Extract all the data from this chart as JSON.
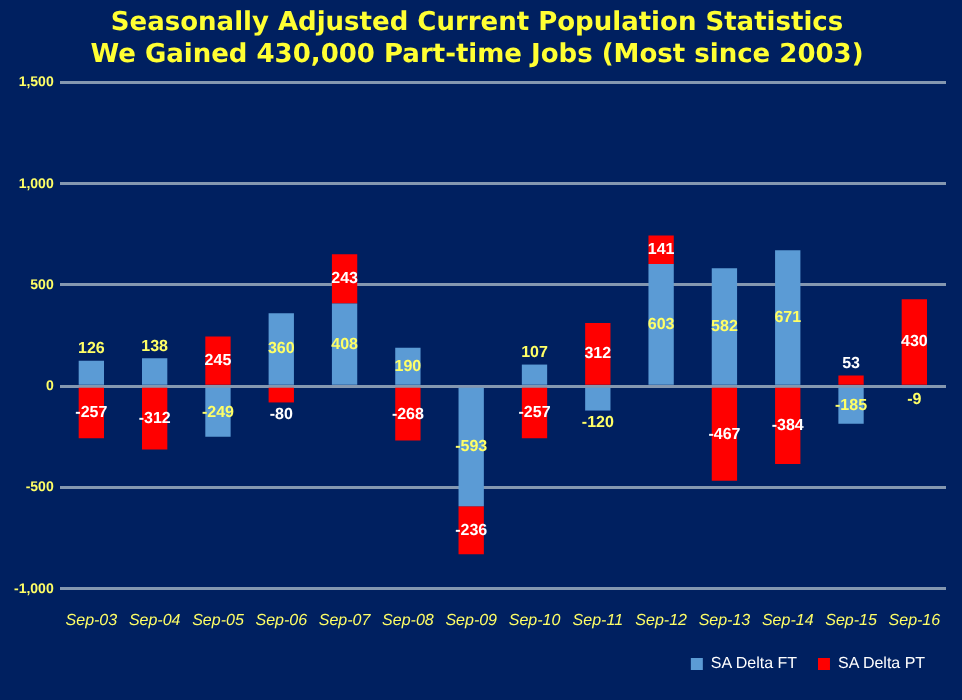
{
  "chart_data": {
    "type": "bar",
    "stacked": true,
    "title": "Seasonally Adjusted Current Population Statistics",
    "subtitle": "We Gained 430,000 Part-time Jobs (Most since 2003)",
    "categories": [
      "Sep-03",
      "Sep-04",
      "Sep-05",
      "Sep-06",
      "Sep-07",
      "Sep-08",
      "Sep-09",
      "Sep-10",
      "Sep-11",
      "Sep-12",
      "Sep-13",
      "Sep-14",
      "Sep-15",
      "Sep-16"
    ],
    "series": [
      {
        "name": "SA Delta FT",
        "color": "#5b9bd5",
        "values": [
          126,
          138,
          -249,
          360,
          408,
          190,
          -593,
          107,
          -120,
          603,
          582,
          671,
          -185,
          -9
        ]
      },
      {
        "name": "SA Delta PT",
        "color": "#ff0000",
        "values": [
          -257,
          -312,
          245,
          -80,
          243,
          -268,
          -236,
          -257,
          312,
          141,
          -467,
          -384,
          53,
          430
        ]
      }
    ],
    "ylim": [
      -1000,
      1500
    ],
    "yticks": [
      {
        "value": -1000,
        "label": "-1,000"
      },
      {
        "value": -500,
        "label": "-500"
      },
      0,
      500,
      {
        "value": 1000,
        "label": "1,000"
      },
      {
        "value": 1500,
        "label": "1,500"
      }
    ],
    "grid": "y",
    "legend": "bottom",
    "data_labels": true
  }
}
